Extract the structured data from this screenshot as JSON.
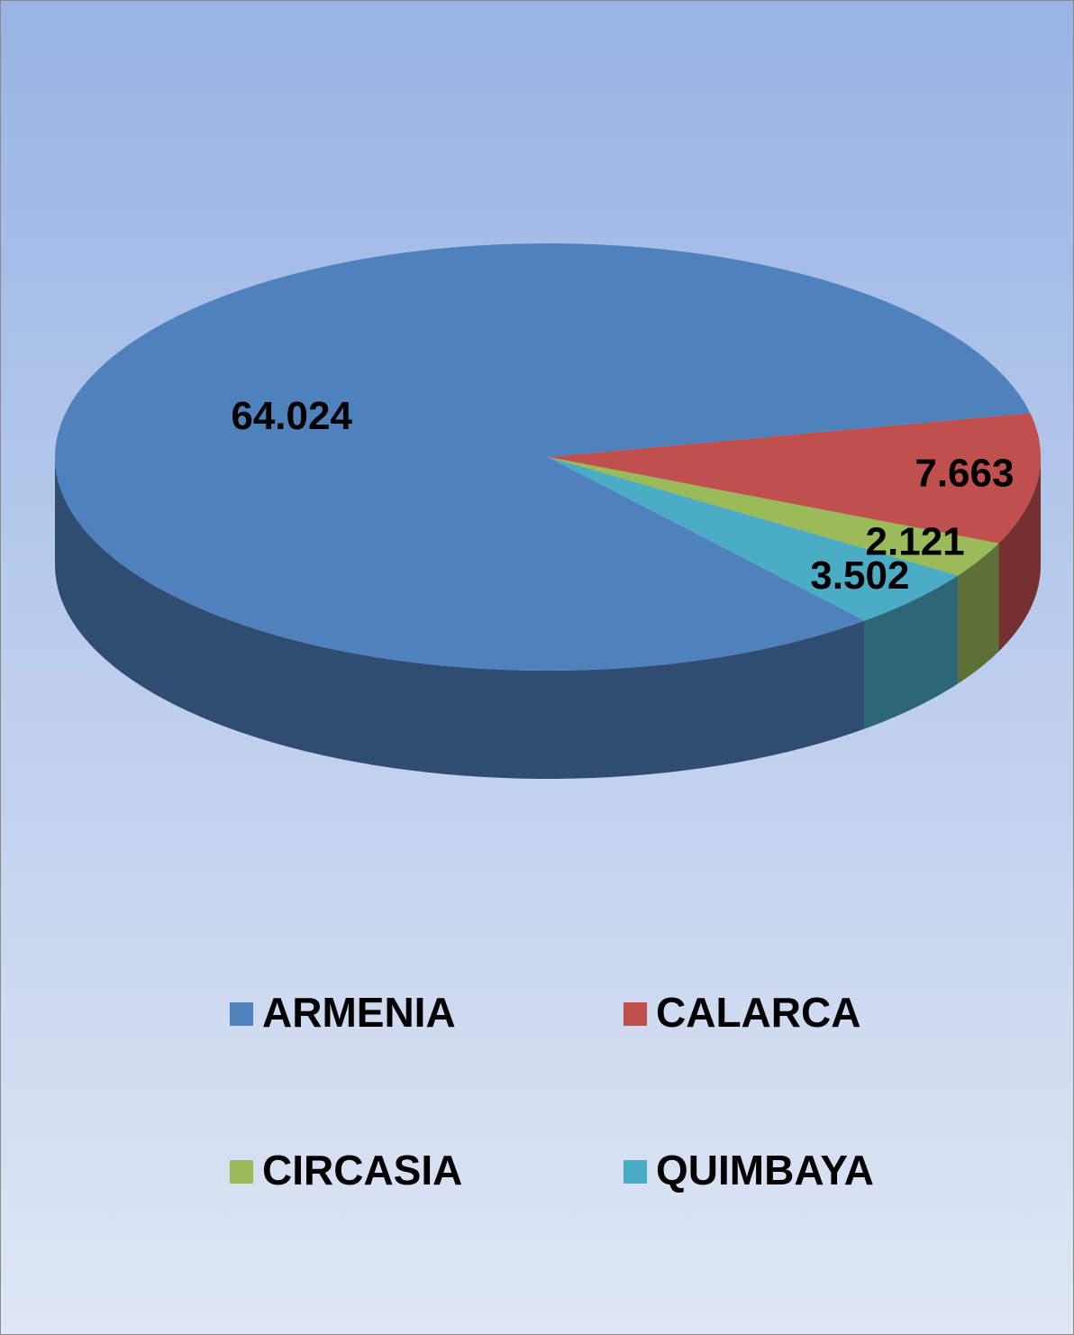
{
  "chart_data": {
    "type": "pie",
    "categories": [
      "ARMENIA",
      "CALARCA",
      "CIRCASIA",
      "QUIMBAYA"
    ],
    "values": [
      64.024,
      7.663,
      2.121,
      3.502
    ],
    "colors": [
      "#4f81bd",
      "#c0504d",
      "#9bbb59",
      "#4bacc6"
    ],
    "legend": "bottom"
  }
}
